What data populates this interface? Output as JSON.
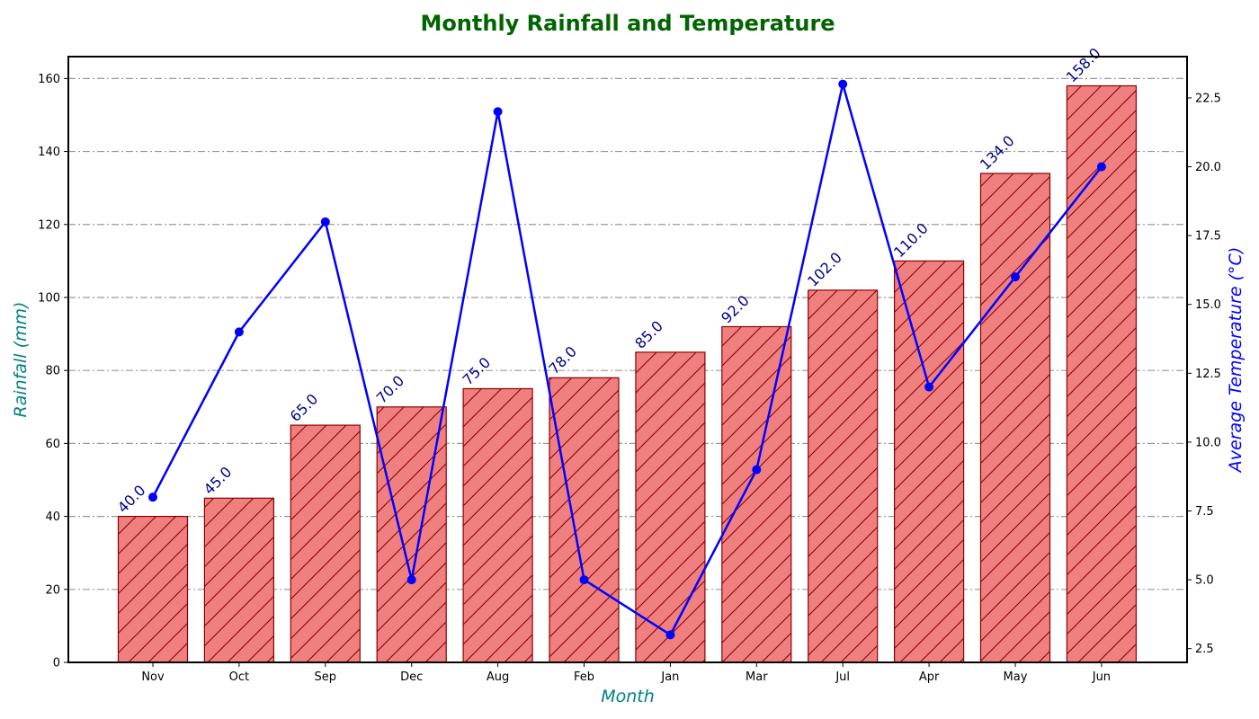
{
  "chart_data": {
    "type": "bar",
    "title": "Monthly Rainfall and Temperature",
    "xlabel": "Month",
    "ylabel": "Rainfall (mm)",
    "y2label": "Average Temperature (°C)",
    "categories": [
      "Nov",
      "Oct",
      "Sep",
      "Dec",
      "Aug",
      "Feb",
      "Jan",
      "Mar",
      "Jul",
      "Apr",
      "May",
      "Jun"
    ],
    "series": [
      {
        "type": "bar",
        "axis": "left",
        "values": [
          40.0,
          45.0,
          65.0,
          70.0,
          75.0,
          78.0,
          85.0,
          92.0,
          102.0,
          110.0,
          134.0,
          158.0
        ],
        "data_labels": [
          "40.0",
          "45.0",
          "65.0",
          "70.0",
          "75.0",
          "78.0",
          "85.0",
          "92.0",
          "102.0",
          "110.0",
          "134.0",
          "158.0"
        ],
        "color": "#f08080",
        "edge_color": "#8b0000",
        "hatch": "/"
      },
      {
        "type": "line",
        "axis": "right",
        "values": [
          8,
          14,
          18,
          5,
          22,
          5,
          3,
          9,
          23,
          12,
          16,
          20
        ],
        "color": "#0000ff",
        "marker": "circle"
      }
    ],
    "ylim": [
      0,
      166
    ],
    "y2lim": [
      2,
      24
    ],
    "yticks": [
      0,
      20,
      40,
      60,
      80,
      100,
      120,
      140,
      160
    ],
    "y2ticks": [
      2.5,
      5.0,
      7.5,
      10.0,
      12.5,
      15.0,
      17.5,
      20.0,
      22.5
    ],
    "grid": "horizontal dash-dot",
    "grid_color": "#999999",
    "title_color": "#006400",
    "axis_label_color": "#008080",
    "y2label_color": "#0000ff",
    "bar_label_color": "#00008b"
  }
}
